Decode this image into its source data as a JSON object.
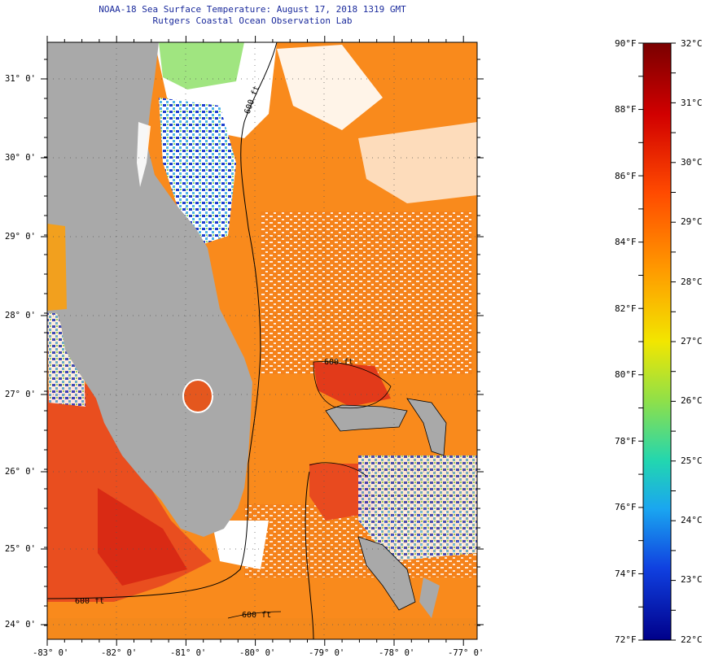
{
  "header": {
    "title": "NOAA-18 Sea Surface Temperature:  August 17, 2018 1319 GMT",
    "subtitle": "Rutgers Coastal Ocean Observation Lab"
  },
  "map": {
    "lon_labels": [
      "-83° 0'",
      "-82° 0'",
      "-81° 0'",
      "-80° 0'",
      "-79° 0'",
      "-78° 0'",
      "-77° 0'"
    ],
    "lat_labels": [
      "31° 0'",
      "30° 0'",
      "29° 0'",
      "28° 0'",
      "27° 0'",
      "26° 0'",
      "25° 0'",
      "24° 0'"
    ],
    "contour_labels": [
      "600 ft",
      "600 ft",
      "600 ft",
      "600 ft"
    ],
    "colors": {
      "land": "#a9a9a9",
      "cloud": "#ffffff",
      "warm_water": "#f98a1c",
      "hot_water": "#e23a1a",
      "cool_water": "#1c3fd0",
      "mid_water": "#8fe06a"
    }
  },
  "colorbar": {
    "fahrenheit_labels": [
      "90°F",
      "88°F",
      "86°F",
      "84°F",
      "82°F",
      "80°F",
      "78°F",
      "76°F",
      "74°F",
      "72°F"
    ],
    "celsius_labels": [
      "32°C",
      "31°C",
      "30°C",
      "29°C",
      "28°C",
      "27°C",
      "26°C",
      "25°C",
      "24°C",
      "23°C",
      "22°C"
    ],
    "range_f": [
      72,
      90
    ],
    "range_c": [
      22,
      32
    ],
    "colors": [
      "#7a0000",
      "#d10000",
      "#ff4a00",
      "#ff9a00",
      "#f2e600",
      "#8ee04a",
      "#22d6b0",
      "#1aa6f0",
      "#1040e0",
      "#00008a"
    ]
  }
}
